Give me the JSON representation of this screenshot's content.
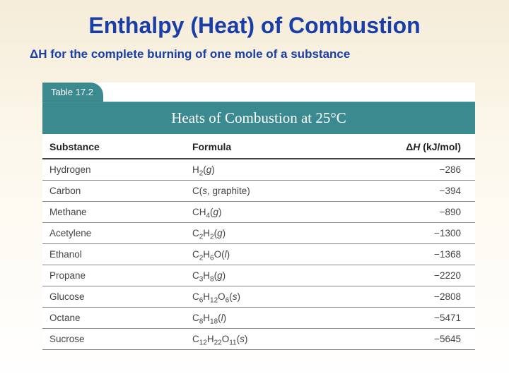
{
  "title": "Enthalpy (Heat) of Combustion",
  "subtitle": "ΔH for the complete burning of one mole of a substance",
  "table": {
    "tab_label": "Table 17.2",
    "heading": "Heats of Combustion at 25°C",
    "columns": {
      "c0": "Substance",
      "c1": "Formula",
      "c2_prefix": "Δ",
      "c2_mid": "H",
      "c2_suffix": " (kJ/mol)"
    },
    "rows": [
      {
        "substance": "Hydrogen",
        "f_main": "H",
        "f_sub1": "2",
        "f_rest": "",
        "state": "(g)",
        "dh": "−286"
      },
      {
        "substance": "Carbon",
        "f_main": "C",
        "f_sub1": "",
        "f_rest": "",
        "state": "(s, graphite)",
        "dh": "−394"
      },
      {
        "substance": "Methane",
        "f_main": "CH",
        "f_sub1": "4",
        "f_rest": "",
        "state": "(g)",
        "dh": "−890"
      },
      {
        "substance": "Acetylene",
        "f_main": "C",
        "f_sub1": "2",
        "f_rest": "H",
        "f_sub2": "2",
        "state": "(g)",
        "dh": "−1300"
      },
      {
        "substance": "Ethanol",
        "f_main": "C",
        "f_sub1": "2",
        "f_rest": "H",
        "f_sub2": "6",
        "f_rest2": "O",
        "state": "(l)",
        "dh": "−1368"
      },
      {
        "substance": "Propane",
        "f_main": "C",
        "f_sub1": "3",
        "f_rest": "H",
        "f_sub2": "8",
        "state": "(g)",
        "dh": "−2220"
      },
      {
        "substance": "Glucose",
        "f_main": "C",
        "f_sub1": "6",
        "f_rest": "H",
        "f_sub2": "12",
        "f_rest2": "O",
        "f_sub3": "6",
        "state": "(s)",
        "dh": "−2808"
      },
      {
        "substance": "Octane",
        "f_main": "C",
        "f_sub1": "8",
        "f_rest": "H",
        "f_sub2": "18",
        "state": "(l)",
        "dh": "−5471"
      },
      {
        "substance": "Sucrose",
        "f_main": "C",
        "f_sub1": "12",
        "f_rest": "H",
        "f_sub2": "22",
        "f_rest2": "O",
        "f_sub3": "11",
        "state": "(s)",
        "dh": "−5645"
      }
    ],
    "colors": {
      "header_bg": "#3a8a8f",
      "header_text": "#ffffff",
      "title_color": "#1a3ea8",
      "row_border": "#888888"
    }
  }
}
